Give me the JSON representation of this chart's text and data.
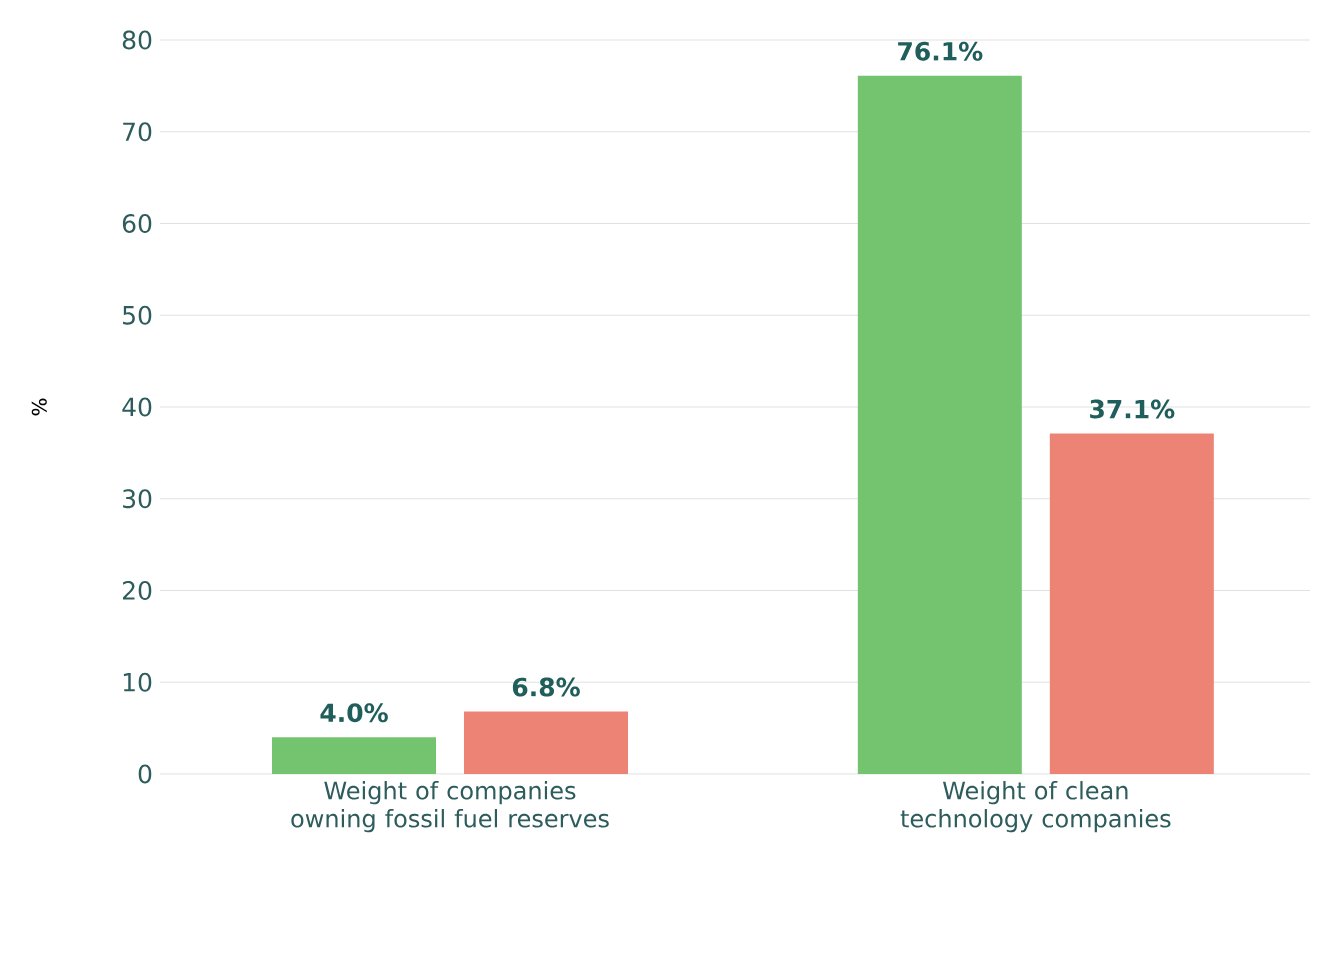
{
  "chart_data": {
    "type": "bar",
    "ylabel": "%",
    "categories": [
      "Weight of companies owning fossil fuel reserves",
      "Weight of clean technology companies"
    ],
    "series": [
      {
        "color": "#74c46f",
        "values": [
          4.0,
          76.1
        ],
        "value_labels": [
          "4.0%",
          "76.1%"
        ]
      },
      {
        "color": "#ec8375",
        "values": [
          6.8,
          37.1
        ],
        "value_labels": [
          "6.8%",
          "37.1%"
        ]
      }
    ],
    "ylim": [
      0,
      80
    ],
    "yticks": [
      0,
      10,
      20,
      30,
      40,
      50,
      60,
      70,
      80
    ],
    "grid": "y"
  }
}
